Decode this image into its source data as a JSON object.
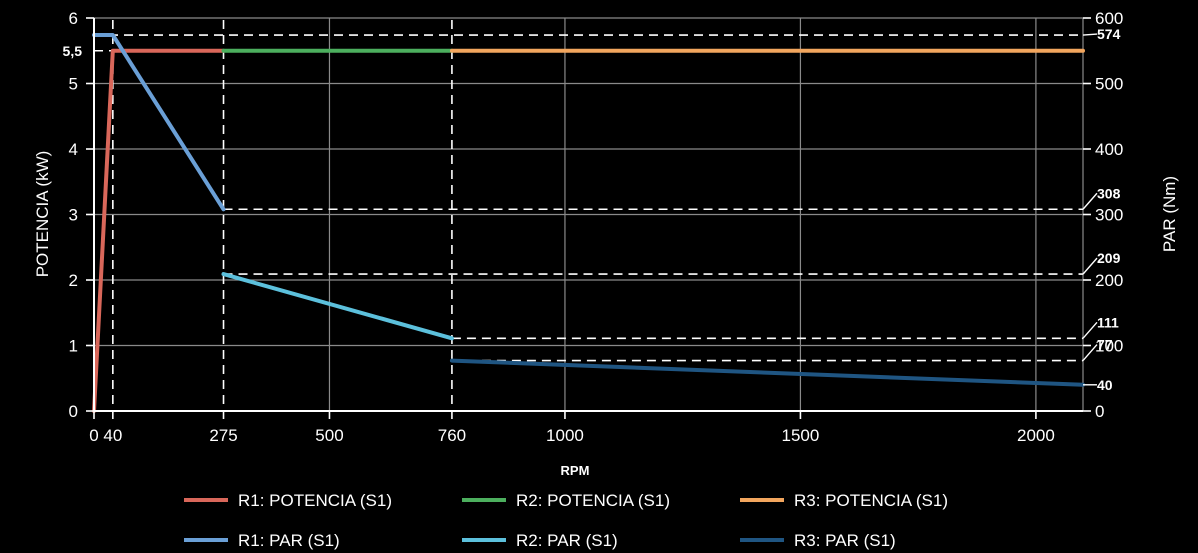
{
  "chart_data": {
    "type": "line",
    "title": "",
    "xlabel": "RPM",
    "ylabel_left": "POTENCIA (kW)",
    "ylabel_right": "PAR (Nm)",
    "xlim": [
      0,
      2100
    ],
    "ylim_left": [
      0,
      6
    ],
    "ylim_right": [
      0,
      600
    ],
    "grid": true,
    "legend_position": "bottom",
    "x_ticks": [
      {
        "value": 0,
        "label": "0"
      },
      {
        "value": 40,
        "label": "40"
      },
      {
        "value": 275,
        "label": "275"
      },
      {
        "value": 500,
        "label": "500"
      },
      {
        "value": 760,
        "label": "760"
      },
      {
        "value": 1000,
        "label": "1000"
      },
      {
        "value": 1500,
        "label": "1500"
      },
      {
        "value": 2000,
        "label": "2000"
      }
    ],
    "y_left_ticks": [
      {
        "value": 0,
        "label": "0"
      },
      {
        "value": 1,
        "label": "1"
      },
      {
        "value": 2,
        "label": "2"
      },
      {
        "value": 3,
        "label": "3"
      },
      {
        "value": 4,
        "label": "4"
      },
      {
        "value": 5,
        "label": "5"
      },
      {
        "value": 6,
        "label": "6"
      }
    ],
    "y_left_marked": [
      {
        "value": 5.5,
        "label": "5,5"
      }
    ],
    "y_right_ticks": [
      {
        "value": 0,
        "label": "0"
      },
      {
        "value": 100,
        "label": "100"
      },
      {
        "value": 200,
        "label": "200"
      },
      {
        "value": 300,
        "label": "300"
      },
      {
        "value": 400,
        "label": "400"
      },
      {
        "value": 500,
        "label": "500"
      },
      {
        "value": 600,
        "label": "600"
      }
    ],
    "y_right_marked": [
      {
        "value": 574,
        "label": "574"
      },
      {
        "value": 308,
        "label": "308"
      },
      {
        "value": 209,
        "label": "209"
      },
      {
        "value": 111,
        "label": "111"
      },
      {
        "value": 77,
        "label": "77"
      },
      {
        "value": 40,
        "label": "40"
      }
    ],
    "x_marked": [
      40,
      275,
      760
    ],
    "series": [
      {
        "name": "R1: POTENCIA (S1)",
        "axis": "left",
        "color": "#d9675a",
        "points": [
          [
            0,
            0
          ],
          [
            40,
            5.5
          ],
          [
            275,
            5.5
          ]
        ]
      },
      {
        "name": "R2: POTENCIA (S1)",
        "axis": "left",
        "color": "#4caf5e",
        "points": [
          [
            275,
            5.5
          ],
          [
            760,
            5.5
          ]
        ]
      },
      {
        "name": "R3: POTENCIA (S1)",
        "axis": "left",
        "color": "#f2a65e",
        "points": [
          [
            760,
            5.5
          ],
          [
            2100,
            5.5
          ]
        ]
      },
      {
        "name": "R1: PAR (S1)",
        "axis": "right",
        "color": "#6a9fd6",
        "points": [
          [
            0,
            574
          ],
          [
            40,
            574
          ],
          [
            275,
            308
          ]
        ]
      },
      {
        "name": "R2: PAR (S1)",
        "axis": "right",
        "color": "#5cc0dc",
        "points": [
          [
            275,
            209
          ],
          [
            760,
            111
          ]
        ]
      },
      {
        "name": "R3: PAR (S1)",
        "axis": "right",
        "color": "#1f5582",
        "points": [
          [
            760,
            77
          ],
          [
            2100,
            40
          ]
        ]
      }
    ]
  }
}
